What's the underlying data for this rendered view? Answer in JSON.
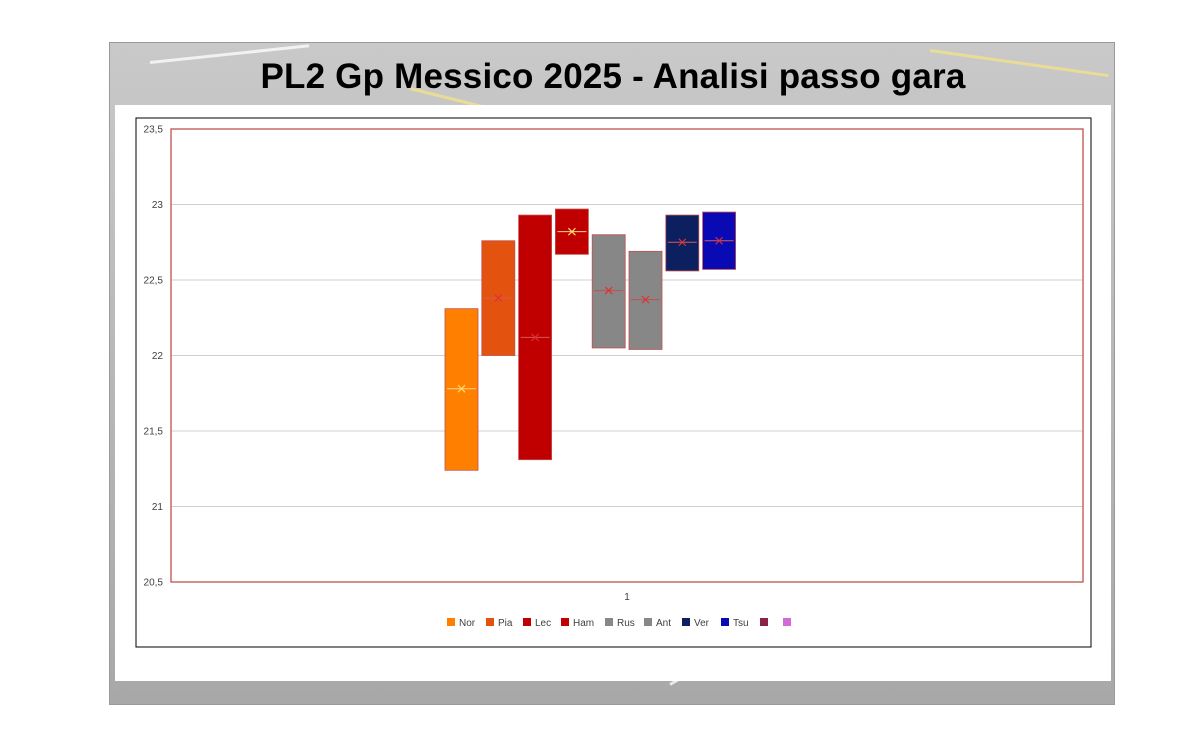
{
  "slide": {
    "title": "PL2 Gp Messico 2025 - Analisi passo gara"
  },
  "chart_data": {
    "type": "boxplot",
    "x_category_label": "1",
    "ylim": [
      20.5,
      23.5
    ],
    "y_ticks": [
      "20,5",
      "21",
      "21,5",
      "22",
      "22,5",
      "23",
      "23,5"
    ],
    "grid": true,
    "legend_position": "bottom",
    "series": [
      {
        "name": "Nor",
        "color": "#ff8000",
        "q1": 21.24,
        "q3": 22.31,
        "median": 21.78,
        "mean": 21.78
      },
      {
        "name": "Pia",
        "color": "#e3530f",
        "q1": 22.0,
        "q3": 22.76,
        "median": 22.38,
        "mean": 22.38
      },
      {
        "name": "Lec",
        "color": "#c00000",
        "q1": 21.31,
        "q3": 22.93,
        "median": 22.12,
        "mean": 22.12
      },
      {
        "name": "Ham",
        "color": "#c00000",
        "q1": 22.67,
        "q3": 22.97,
        "median": 22.82,
        "mean": 22.82
      },
      {
        "name": "Rus",
        "color": "#878787",
        "q1": 22.05,
        "q3": 22.8,
        "median": 22.43,
        "mean": 22.43
      },
      {
        "name": "Ant",
        "color": "#878787",
        "q1": 22.04,
        "q3": 22.69,
        "median": 22.37,
        "mean": 22.37
      },
      {
        "name": "Ver",
        "color": "#0c1f5e",
        "q1": 22.56,
        "q3": 22.93,
        "median": 22.75,
        "mean": 22.75
      },
      {
        "name": "Tsu",
        "color": "#0a0ab4",
        "q1": 22.57,
        "q3": 22.95,
        "median": 22.76,
        "mean": 22.76
      },
      {
        "name": "",
        "color": "#8a2344"
      },
      {
        "name": "",
        "color": "#d46ad6"
      }
    ]
  }
}
